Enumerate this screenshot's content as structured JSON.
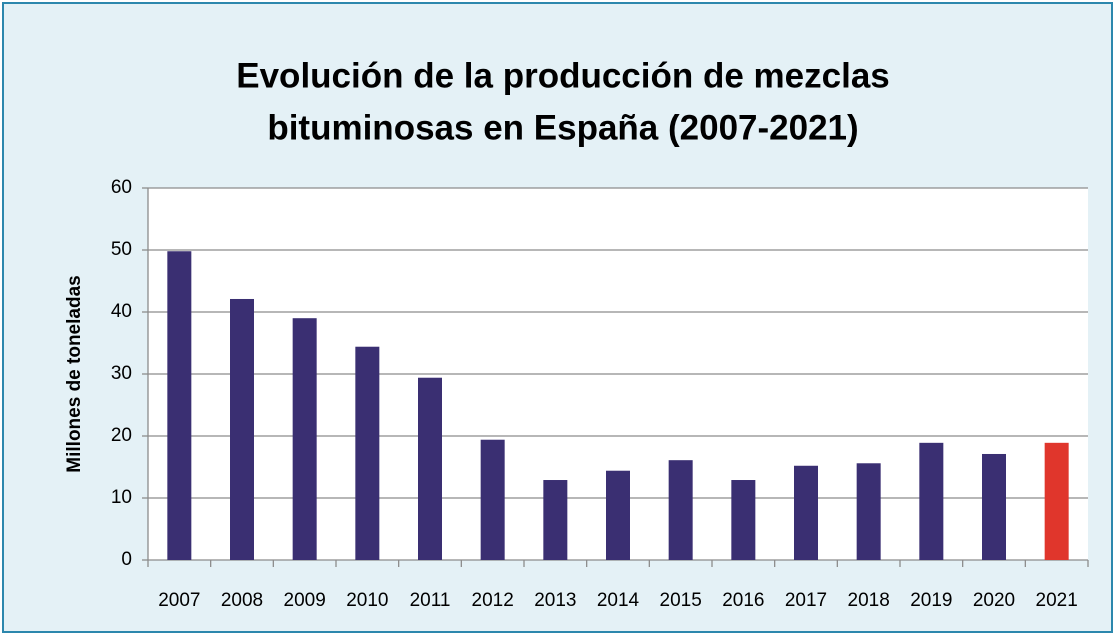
{
  "chart_data": {
    "type": "bar",
    "title": [
      "Evolución de la producción de mezclas",
      "bituminosas en España (2007-2021)"
    ],
    "y_label": "Millones de toneladas",
    "categories": [
      "2007",
      "2008",
      "2009",
      "2010",
      "2011",
      "2012",
      "2013",
      "2014",
      "2015",
      "2016",
      "2017",
      "2018",
      "2019",
      "2020",
      "2021"
    ],
    "values": [
      49.8,
      42.1,
      39.0,
      34.4,
      29.4,
      19.4,
      12.9,
      14.4,
      16.1,
      12.9,
      15.2,
      15.6,
      18.9,
      17.1,
      18.9
    ],
    "colors": [
      "#3a2f72",
      "#3a2f72",
      "#3a2f72",
      "#3a2f72",
      "#3a2f72",
      "#3a2f72",
      "#3a2f72",
      "#3a2f72",
      "#3a2f72",
      "#3a2f72",
      "#3a2f72",
      "#3a2f72",
      "#3a2f72",
      "#3a2f72",
      "#e0362c"
    ],
    "ylim": [
      0,
      60
    ],
    "yticks": [
      0,
      10,
      20,
      30,
      40,
      50,
      60
    ],
    "grid": true
  }
}
